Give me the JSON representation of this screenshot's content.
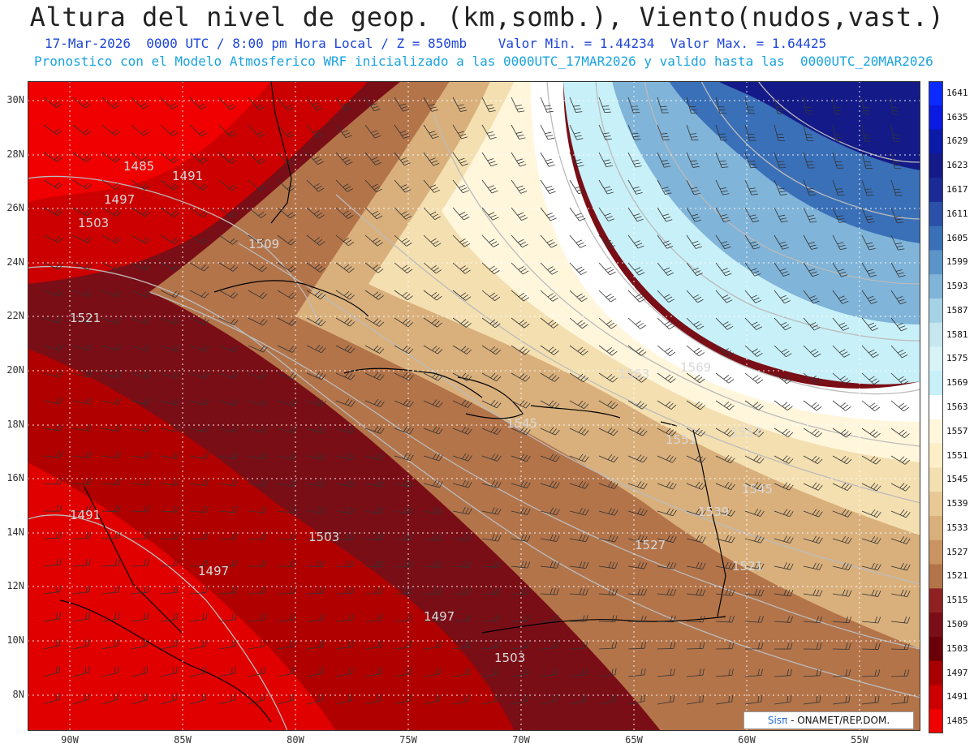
{
  "header": {
    "title": "Altura del nivel de geop. (km,somb.), Viento(nudos,vast.)",
    "line1": "17-Mar-2026  0000 UTC / 8:00 pm Hora Local / Z = 850mb    Valor Min. = 1.44234  Valor Max. = 1.64425",
    "line2": "Pronostico con el Modelo Atmosferico WRF inicializado a las 0000UTC_17MAR2026 y valido hasta las  0000UTC_20MAR2026"
  },
  "map": {
    "lat_ticks": [
      "30N",
      "28N",
      "26N",
      "24N",
      "22N",
      "20N",
      "18N",
      "16N",
      "14N",
      "12N",
      "10N",
      "8N"
    ],
    "lon_ticks": [
      "90W",
      "85W",
      "80W",
      "75W",
      "70W",
      "65W",
      "60W",
      "55W"
    ],
    "contour_labels": [
      "1485",
      "1491",
      "1497",
      "1503",
      "1509",
      "1521",
      "1545",
      "1563",
      "1569",
      "1557",
      "1551",
      "1545",
      "1539",
      "1527",
      "1521",
      "1491",
      "1503",
      "1497",
      "1497",
      "1503"
    ],
    "grid_lines": "dotted-white",
    "wind": "barbs"
  },
  "colorbar": {
    "levels": [
      "1641",
      "1635",
      "1629",
      "1623",
      "1617",
      "1611",
      "1605",
      "1599",
      "1593",
      "1587",
      "1581",
      "1575",
      "1569",
      "1563",
      "1557",
      "1551",
      "1545",
      "1539",
      "1533",
      "1527",
      "1521",
      "1515",
      "1509",
      "1503",
      "1497",
      "1491",
      "1485"
    ],
    "colors": [
      "#0a2aff",
      "#0a1ae0",
      "#0c1aa8",
      "#141a88",
      "#1b2a94",
      "#2a50a8",
      "#3a70b8",
      "#5b95c8",
      "#80b4d8",
      "#a6d2e6",
      "#c6e6f0",
      "#d8f2f6",
      "#c8f0f8",
      "#ffffff",
      "#fff6dc",
      "#fdeec8",
      "#f4dfb0",
      "#e8c996",
      "#d9b07c",
      "#c99362",
      "#b3744a",
      "#8e2222",
      "#7a0e16",
      "#6a0008",
      "#a80000",
      "#cc0000",
      "#f00000"
    ]
  },
  "credit": {
    "brand": "Sisπ",
    "text": " - ONAMET/REP.DOM."
  }
}
